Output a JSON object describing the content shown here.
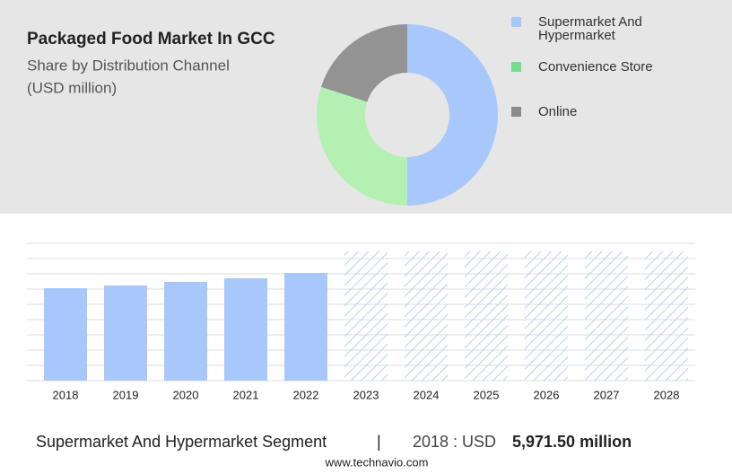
{
  "chart_data": [
    {
      "type": "pie",
      "title": "Packaged Food Market In GCC",
      "subtitle": "Share by Distribution Channel",
      "unit_note": "(USD million)",
      "categories": [
        "Supermarket And Hypermarket",
        "Convenience Store",
        "Online"
      ],
      "values": [
        50,
        30,
        20
      ],
      "colors": [
        "#a8c8fb",
        "#b5f0b3",
        "#939393"
      ],
      "legend_colors": [
        "#a8c8fb",
        "#70e08b",
        "#8b8b8b"
      ]
    },
    {
      "type": "bar",
      "categories": [
        "2018",
        "2019",
        "2020",
        "2021",
        "2022",
        "2023",
        "2024",
        "2025",
        "2026",
        "2027",
        "2028"
      ],
      "values": [
        5971.5,
        6145,
        6377,
        6609,
        6957,
        null,
        null,
        null,
        null,
        null,
        null
      ],
      "color": "#a8c8fb"
    }
  ],
  "footer": {
    "segment": "Supermarket And Hypermarket Segment",
    "separator": "|",
    "year_label": "2018 : USD",
    "amount": "5,971.50 million",
    "source": "www.technavio.com"
  }
}
